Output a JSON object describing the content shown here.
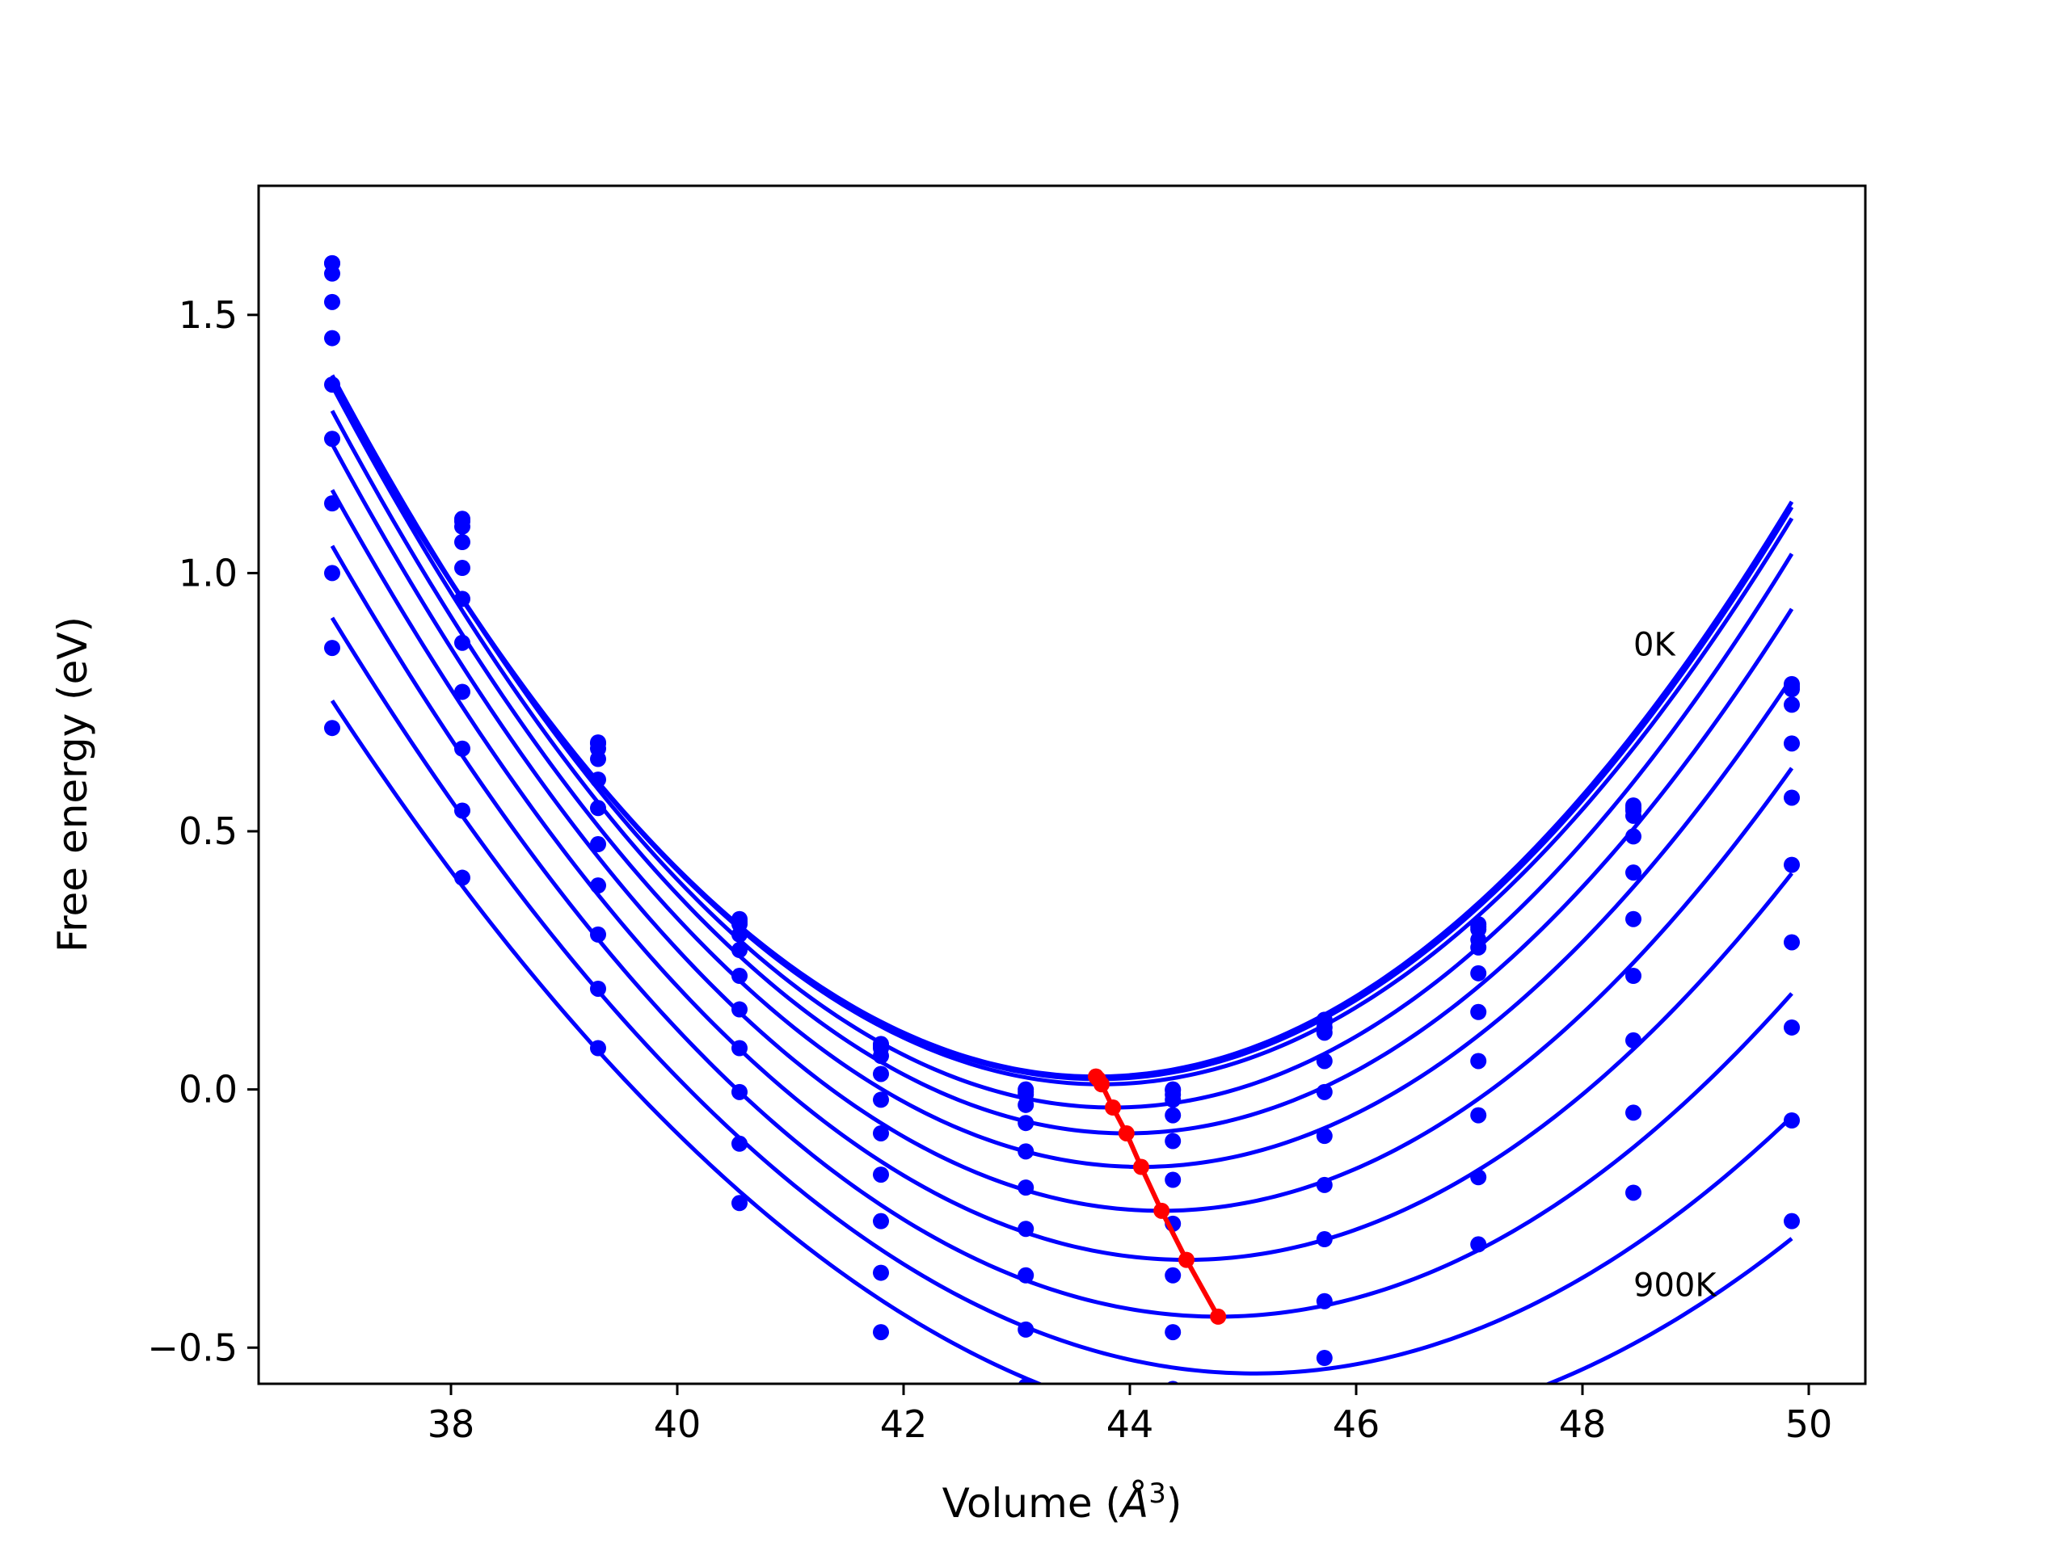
{
  "chart_data": {
    "type": "line",
    "title": "",
    "xlabel": "Volume (",
    "xlabel_symbol": "Å",
    "xlabel_exponent": "3",
    "xlabel_suffix": ")",
    "ylabel": "Free energy (eV)",
    "xlim": [
      36.3,
      50.5
    ],
    "ylim": [
      -0.57,
      1.75
    ],
    "xticks": [
      38,
      40,
      42,
      44,
      46,
      48,
      50
    ],
    "xtick_labels": [
      "38",
      "40",
      "42",
      "44",
      "46",
      "48",
      "50"
    ],
    "yticks": [
      -0.5,
      0.0,
      0.5,
      1.0,
      1.5
    ],
    "ytick_labels": [
      "−0.5",
      "0.0",
      "0.5",
      "1.0",
      "1.5"
    ],
    "grid": false,
    "legend": "none",
    "annotations": [
      {
        "text": "0K",
        "x": 48.45,
        "y": 0.84
      },
      {
        "text": "900K",
        "x": 48.45,
        "y": -0.4
      }
    ],
    "colors": {
      "curves": "#0000ff",
      "points": "#0000ff",
      "minimum_line": "#ff0000"
    },
    "volumes": [
      36.95,
      38.1,
      39.3,
      40.55,
      41.8,
      43.08,
      44.38,
      45.72,
      47.08,
      48.45,
      49.85
    ],
    "series": [
      {
        "v0": 43.7,
        "fmin": 0.025,
        "ys": [
          1.6,
          1.105,
          0.672,
          0.33,
          0.088,
          0.0,
          0.0,
          0.135,
          0.32,
          0.55,
          0.785
        ]
      },
      {
        "v0": 43.72,
        "fmin": 0.02,
        "ys": [
          1.6,
          1.1,
          0.67,
          0.325,
          0.085,
          -0.005,
          -0.002,
          0.13,
          0.315,
          0.545,
          0.78
        ]
      },
      {
        "v0": 43.75,
        "fmin": 0.01,
        "ys": [
          1.58,
          1.09,
          0.66,
          0.32,
          0.08,
          -0.01,
          -0.01,
          0.12,
          0.31,
          0.54,
          0.775
        ]
      },
      {
        "v0": 43.85,
        "fmin": -0.035,
        "ys": [
          1.525,
          1.06,
          0.64,
          0.3,
          0.065,
          -0.03,
          -0.02,
          0.11,
          0.29,
          0.53,
          0.745
        ]
      },
      {
        "v0": 43.97,
        "fmin": -0.085,
        "ys": [
          1.455,
          1.01,
          0.6,
          0.27,
          0.03,
          -0.065,
          -0.05,
          0.055,
          0.275,
          0.49,
          0.67
        ]
      },
      {
        "v0": 44.1,
        "fmin": -0.15,
        "ys": [
          1.365,
          0.95,
          0.545,
          0.22,
          -0.02,
          -0.12,
          -0.1,
          -0.005,
          0.225,
          0.42,
          0.565
        ]
      },
      {
        "v0": 44.28,
        "fmin": -0.235,
        "ys": [
          1.26,
          0.865,
          0.475,
          0.155,
          -0.085,
          -0.19,
          -0.175,
          -0.09,
          0.15,
          0.33,
          0.435
        ]
      },
      {
        "v0": 44.5,
        "fmin": -0.33,
        "ys": [
          1.135,
          0.77,
          0.395,
          0.08,
          -0.165,
          -0.27,
          -0.26,
          -0.185,
          0.055,
          0.22,
          0.285
        ]
      },
      {
        "v0": 44.78,
        "fmin": -0.44,
        "ys": [
          1.0,
          0.66,
          0.3,
          -0.005,
          -0.255,
          -0.36,
          -0.36,
          -0.29,
          -0.05,
          0.095,
          0.12
        ]
      },
      {
        "v0": 45.1,
        "fmin": -0.55,
        "ys": [
          0.855,
          0.54,
          0.195,
          -0.105,
          -0.355,
          -0.465,
          -0.47,
          -0.41,
          -0.17,
          -0.045,
          -0.06
        ]
      },
      {
        "v0": 45.45,
        "fmin": -0.67,
        "ys": [
          0.7,
          0.41,
          0.08,
          -0.22,
          -0.47,
          -0.575,
          -0.58,
          -0.52,
          -0.3,
          -0.2,
          -0.255
        ]
      }
    ],
    "minimum_points": {
      "x": [
        43.7,
        43.72,
        43.75,
        43.85,
        43.97,
        44.1,
        44.28,
        44.5,
        44.78
      ],
      "y": [
        0.025,
        0.02,
        0.01,
        -0.035,
        -0.085,
        -0.15,
        -0.235,
        -0.33,
        -0.44
      ]
    }
  }
}
